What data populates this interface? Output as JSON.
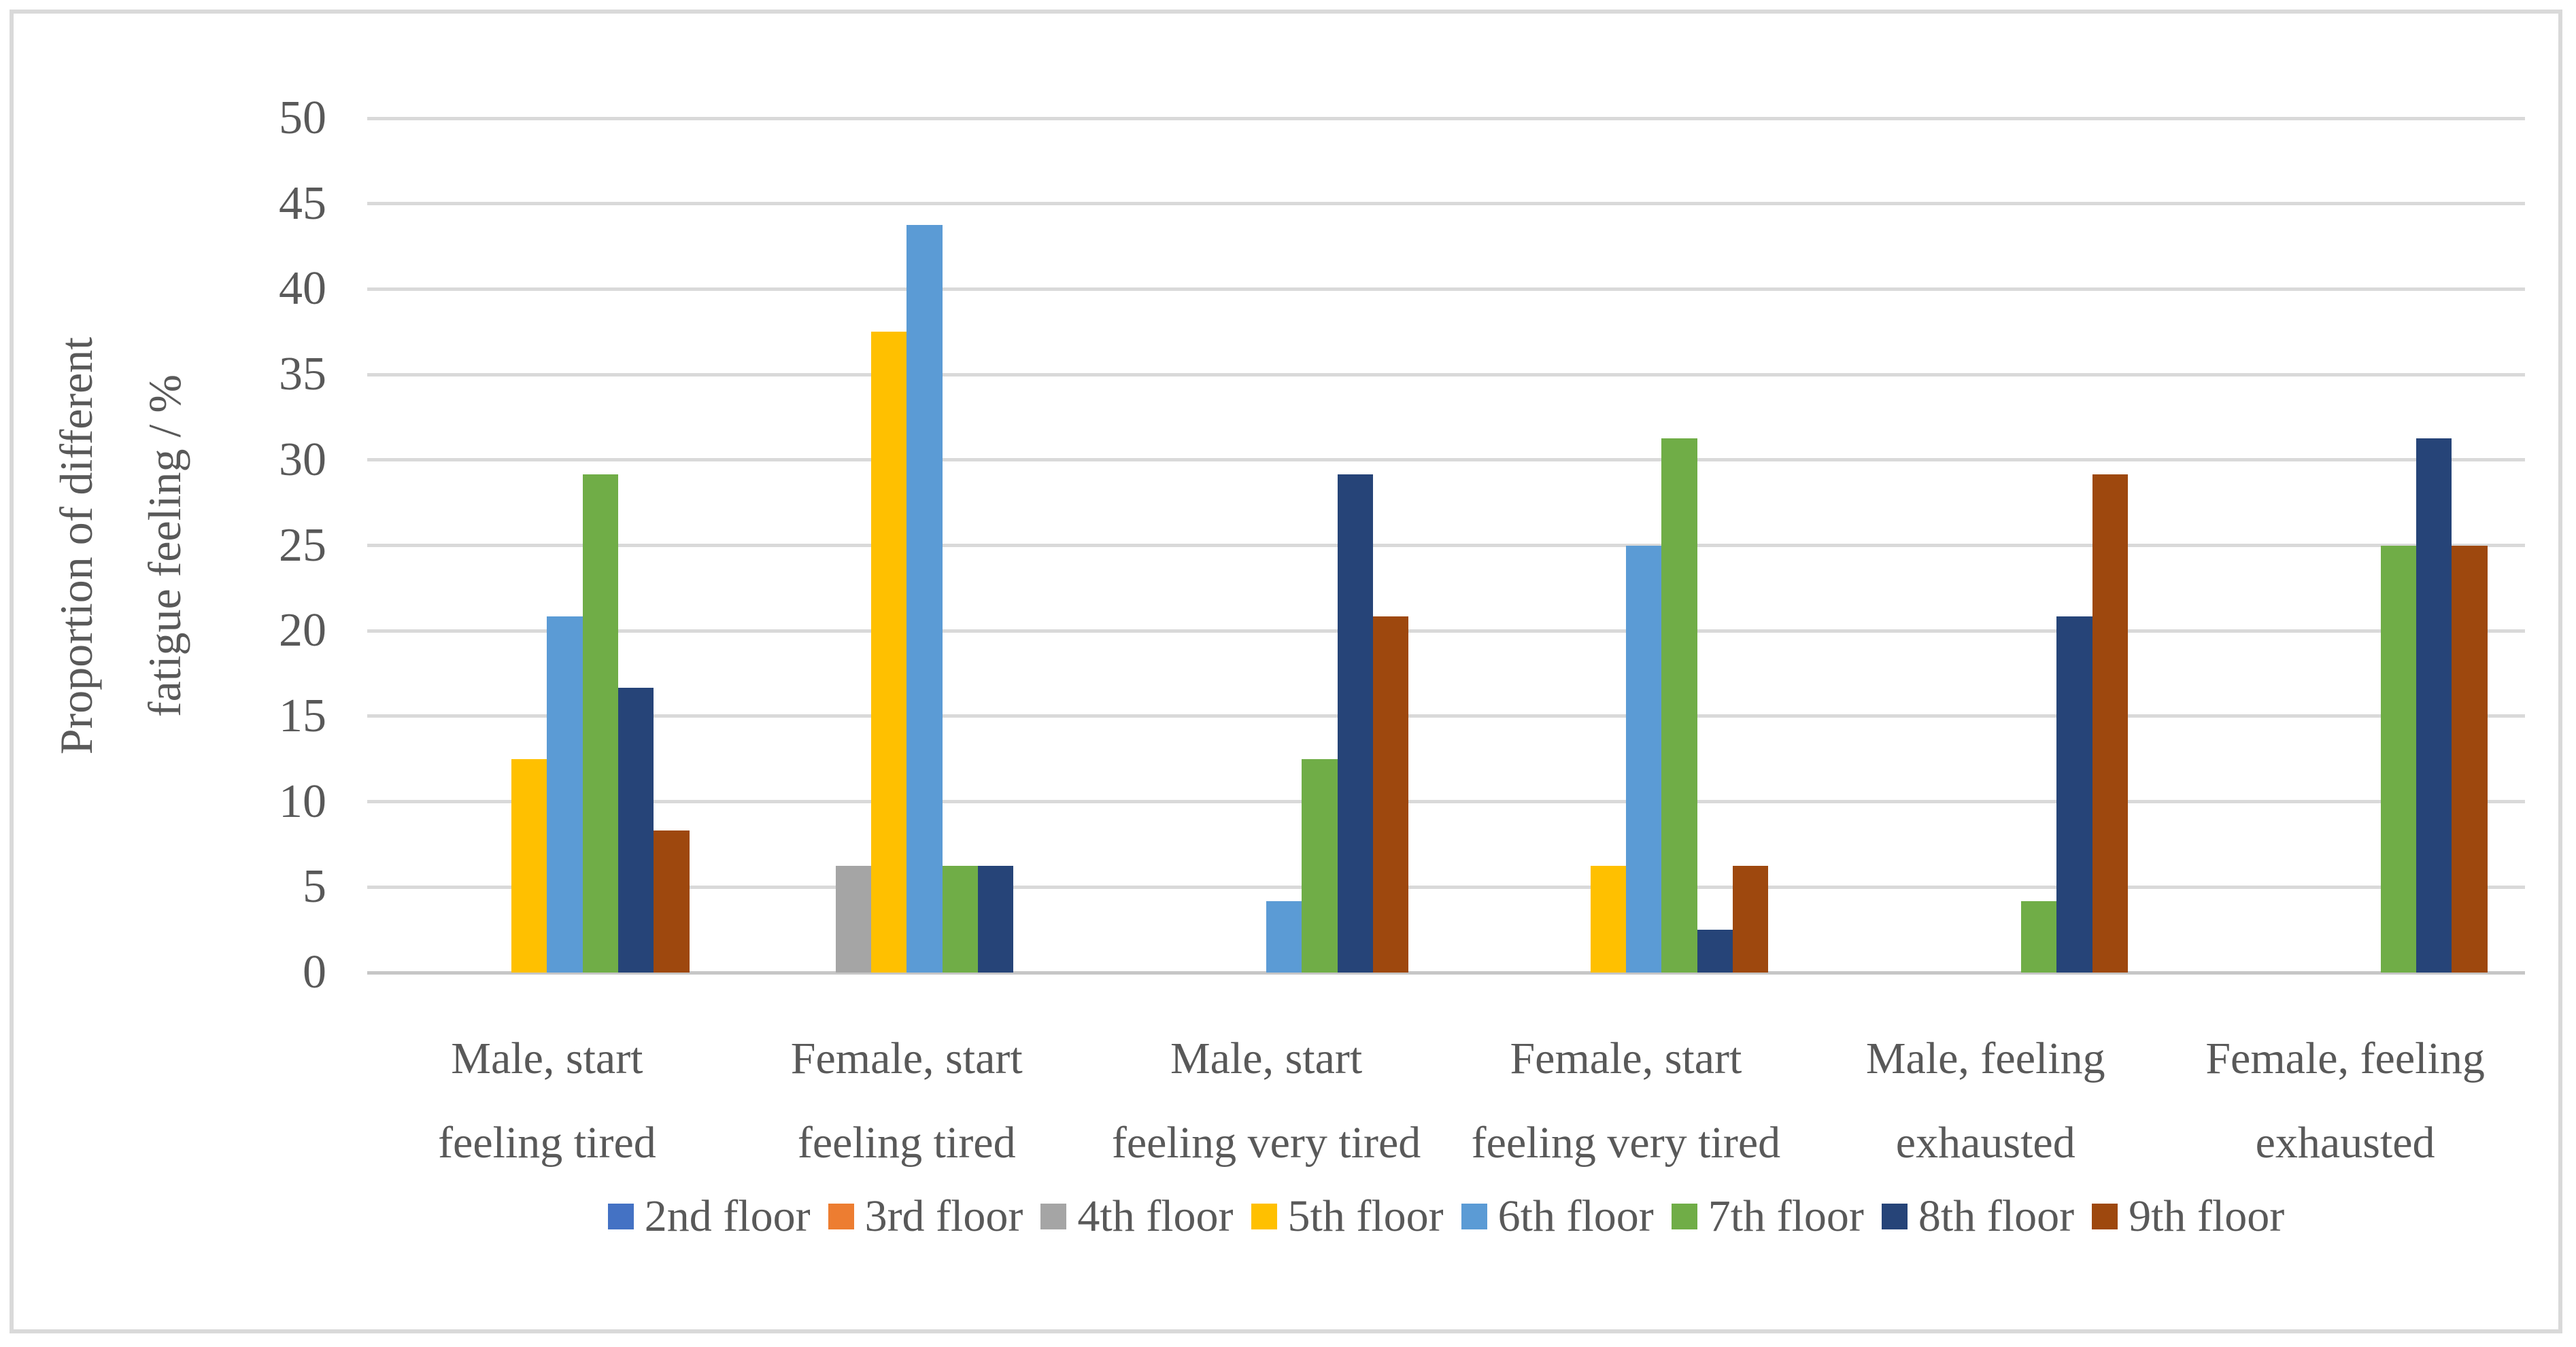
{
  "chart_data": {
    "type": "bar",
    "title": "",
    "ylabel": "Proportion of different fatigue feeling / %",
    "ylabel_lines": [
      "Proportion of different",
      "fatigue feeling / %"
    ],
    "xlabel": "",
    "ylim": [
      0,
      50
    ],
    "ytick_step": 5,
    "yticks": [
      0,
      5,
      10,
      15,
      20,
      25,
      30,
      35,
      40,
      45,
      50
    ],
    "grid": true,
    "legend_position": "bottom",
    "categories": [
      "Male, start feeling tired",
      "Female, start feeling tired",
      "Male, start feeling very tired",
      "Female, start feeling very tired",
      "Male, feeling exhausted",
      "Female, feeling exhausted"
    ],
    "category_lines": [
      [
        "Male, start",
        "feeling tired"
      ],
      [
        "Female, start",
        "feeling tired"
      ],
      [
        "Male, start",
        "feeling very tired"
      ],
      [
        "Female, start",
        "feeling very tired"
      ],
      [
        "Male, feeling",
        "exhausted"
      ],
      [
        "Female, feeling",
        "exhausted"
      ]
    ],
    "series": [
      {
        "name": "2nd floor",
        "color": "#4472C4",
        "values": [
          0,
          0,
          0,
          0,
          0,
          0
        ]
      },
      {
        "name": "3rd floor",
        "color": "#ED7D31",
        "values": [
          0,
          0,
          0,
          0,
          0,
          0
        ]
      },
      {
        "name": "4th floor",
        "color": "#A5A5A5",
        "values": [
          0,
          6.25,
          0,
          0,
          0,
          0
        ]
      },
      {
        "name": "5th floor",
        "color": "#FFC000",
        "values": [
          12.5,
          37.5,
          0,
          6.25,
          0,
          0
        ]
      },
      {
        "name": "6th floor",
        "color": "#5B9BD5",
        "values": [
          20.83,
          43.75,
          4.17,
          25,
          0,
          0
        ]
      },
      {
        "name": "7th floor",
        "color": "#70AD47",
        "values": [
          29.17,
          6.25,
          12.5,
          31.25,
          4.17,
          25
        ]
      },
      {
        "name": "8th floor",
        "color": "#264478",
        "values": [
          16.67,
          6.25,
          29.17,
          2.5,
          20.83,
          31.25
        ]
      },
      {
        "name": "9th floor",
        "color": "#9E480E",
        "values": [
          8.33,
          0,
          20.83,
          6.25,
          29.17,
          25
        ]
      }
    ]
  },
  "colors": {
    "text": "#595959",
    "gridline": "#D9D9D9",
    "axis_line": "#C6C6C6",
    "frame_border": "#D9D9D9",
    "background": "#FFFFFF"
  }
}
